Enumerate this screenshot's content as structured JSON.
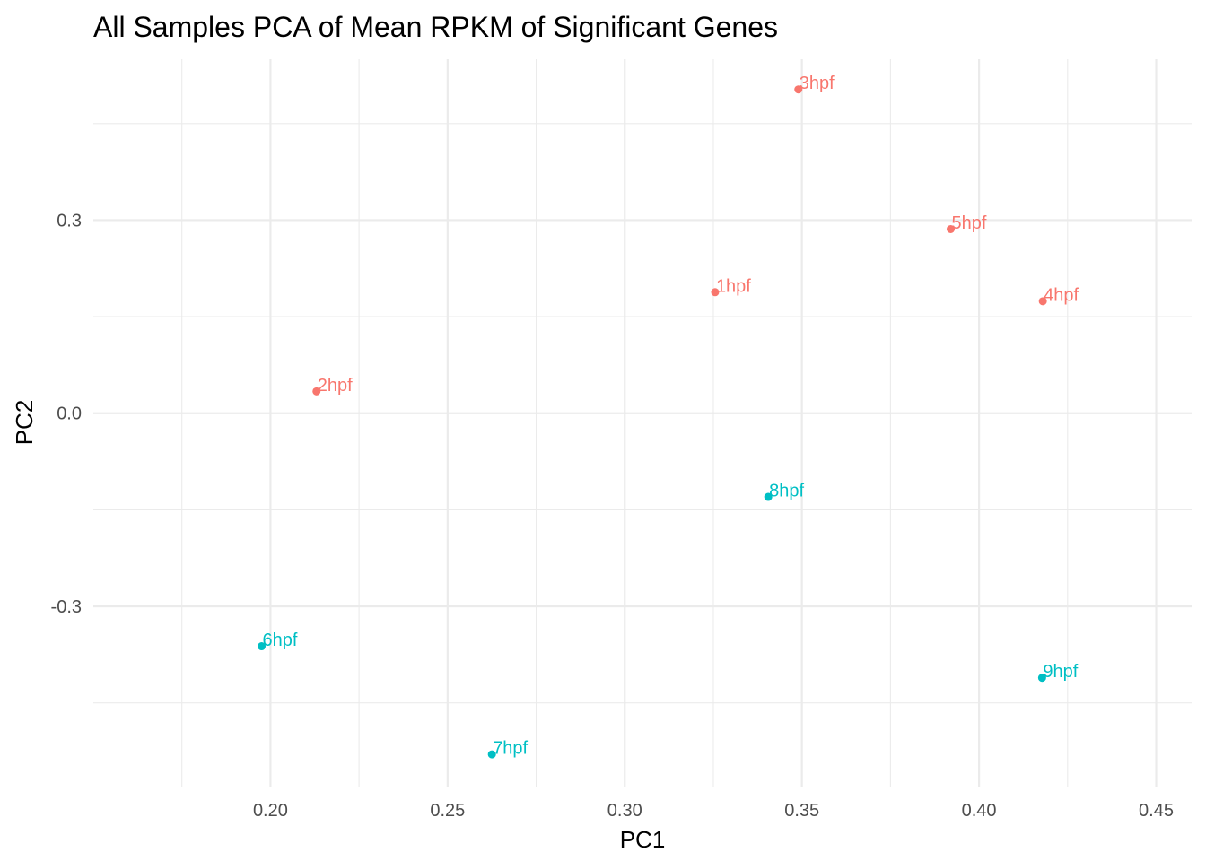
{
  "chart_data": {
    "type": "scatter",
    "title": "All Samples PCA of Mean RPKM of Significant Genes",
    "xlabel": "PC1",
    "ylabel": "PC2",
    "xlim": [
      0.15,
      0.46
    ],
    "ylim": [
      -0.58,
      0.55
    ],
    "x_ticks": [
      0.2,
      0.25,
      0.3,
      0.35,
      0.4,
      0.45
    ],
    "x_tick_labels": [
      "0.20",
      "0.25",
      "0.30",
      "0.35",
      "0.40",
      "0.45"
    ],
    "y_ticks": [
      -0.3,
      0.0,
      0.3
    ],
    "y_tick_labels": [
      "-0.3",
      "0.0",
      "0.3"
    ],
    "grid": true,
    "legend": "none",
    "colors": {
      "group1": "#f8766d",
      "group2": "#00bfc4"
    },
    "points": [
      {
        "label": "1hpf",
        "x": 0.3255,
        "y": 0.188,
        "group": "group1"
      },
      {
        "label": "2hpf",
        "x": 0.213,
        "y": 0.034,
        "group": "group1"
      },
      {
        "label": "3hpf",
        "x": 0.349,
        "y": 0.503,
        "group": "group1"
      },
      {
        "label": "4hpf",
        "x": 0.418,
        "y": 0.174,
        "group": "group1"
      },
      {
        "label": "5hpf",
        "x": 0.392,
        "y": 0.286,
        "group": "group1"
      },
      {
        "label": "6hpf",
        "x": 0.1975,
        "y": -0.362,
        "group": "group2"
      },
      {
        "label": "7hpf",
        "x": 0.2625,
        "y": -0.53,
        "group": "group2"
      },
      {
        "label": "8hpf",
        "x": 0.3405,
        "y": -0.13,
        "group": "group2"
      },
      {
        "label": "9hpf",
        "x": 0.4178,
        "y": -0.411,
        "group": "group2"
      }
    ]
  }
}
